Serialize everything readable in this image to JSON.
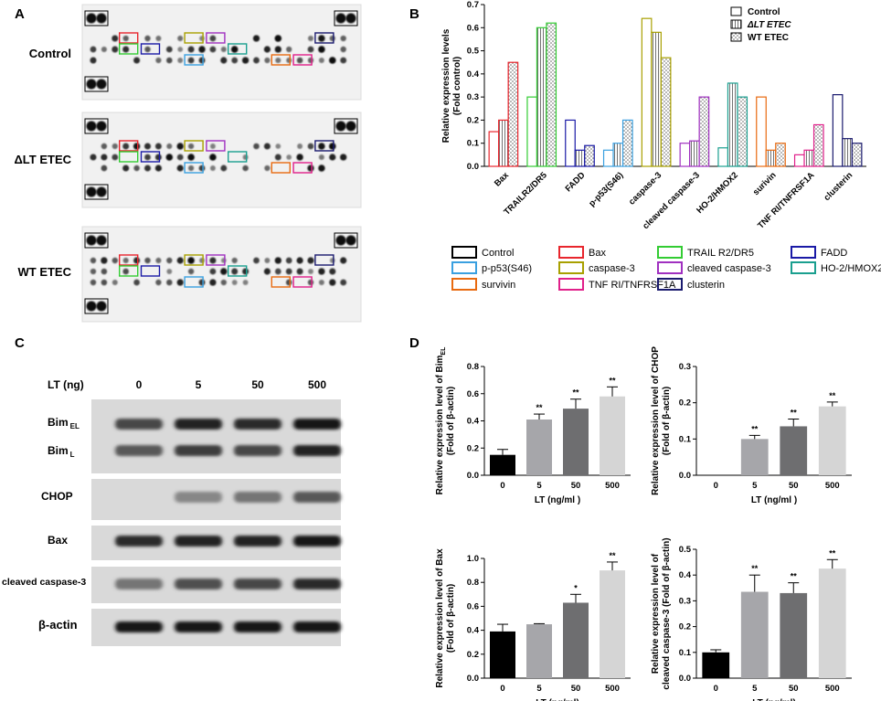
{
  "panels": {
    "A": {
      "label": "A",
      "rows": [
        "Control",
        "ΔLT ETEC",
        "WT ETEC"
      ]
    },
    "B": {
      "label": "B",
      "legend": [
        "Control",
        "ΔLT ETEC",
        "WT ETEC"
      ],
      "key_legend": [
        "Control",
        "Bax",
        "TRAIL R2/DR5",
        "FADD",
        "p-p53(S46)",
        "caspase-3",
        "cleaved caspase-3",
        "HO-2/HMOX2",
        "survivin",
        "TNF RI/TNFRSF1A",
        "clusterin"
      ]
    },
    "C": {
      "label": "C",
      "lt_label": "LT  (ng)",
      "doses": [
        "0",
        "5",
        "50",
        "500"
      ],
      "blot_labels": [
        "Bim",
        "Bim",
        "CHOP",
        "Bax",
        "cleaved caspase-3",
        "β-actin"
      ],
      "blot_subs": [
        "EL",
        "L"
      ]
    },
    "D": {
      "label": "D"
    }
  },
  "colors": {
    "Control": "#000000",
    "Bax": "#e8262d",
    "TRAIL R2/DR5": "#33cc33",
    "FADD": "#1a1aa6",
    "p-p53(S46)": "#3aa0e0",
    "caspase-3": "#a8a000",
    "cleaved caspase-3": "#a030c0",
    "HO-2/HMOX2": "#1a9f8f",
    "survivin": "#e86a10",
    "TNF RI/TNFRSF1A": "#e0208a",
    "clusterin": "#1a1a6e",
    "bar_dark": "#000000",
    "bar_grey1": "#a6a6aa",
    "bar_grey2": "#6e6e70",
    "bar_grey3": "#d5d5d5"
  },
  "chart_data": [
    {
      "panel": "B",
      "type": "bar",
      "categories": [
        "Bax",
        "TRAILR2/DR5",
        "FADD",
        "p-p53(S46)",
        "caspase-3",
        "cleaved caspase-3",
        "HO-2/HMOX2",
        "surivin",
        "TNF RI/TNFRSF1A",
        "clusterin"
      ],
      "series": [
        {
          "name": "Control",
          "values": [
            0.15,
            0.3,
            0.2,
            0.07,
            0.64,
            0.1,
            0.08,
            0.3,
            0.05,
            0.31
          ]
        },
        {
          "name": "ΔLT ETEC",
          "values": [
            0.2,
            0.6,
            0.07,
            0.1,
            0.58,
            0.11,
            0.36,
            0.07,
            0.07,
            0.12
          ]
        },
        {
          "name": "WT ETEC",
          "values": [
            0.45,
            0.62,
            0.09,
            0.2,
            0.47,
            0.3,
            0.3,
            0.1,
            0.18,
            0.1
          ]
        }
      ],
      "ylabel": "Relative expression levels",
      "ylabel2": "(Fold control)",
      "ylim": [
        0,
        0.7
      ],
      "yticks": [
        "0.0",
        "0.1",
        "0.2",
        "0.3",
        "0.4",
        "0.5",
        "0.6",
        "0.7"
      ]
    },
    {
      "panel": "D1",
      "type": "bar",
      "categories": [
        "0",
        "5",
        "50",
        "500"
      ],
      "values": [
        0.15,
        0.41,
        0.49,
        0.58
      ],
      "errors": [
        0.04,
        0.04,
        0.07,
        0.07
      ],
      "sig": [
        "",
        "**",
        "**",
        "**"
      ],
      "xlabel": "LT (ng/ml )",
      "ylabel_pre": "Relative expression level of Bim",
      "ylabel_sub": "EL",
      "ylabel2": "(Fold of β-actin)",
      "ylim": [
        0,
        0.8
      ],
      "yticks": [
        "0.0",
        "0.2",
        "0.4",
        "0.6",
        "0.8"
      ]
    },
    {
      "panel": "D2",
      "type": "bar",
      "categories": [
        "0",
        "5",
        "50",
        "500"
      ],
      "values": [
        0.001,
        0.1,
        0.135,
        0.19
      ],
      "errors": [
        0,
        0.01,
        0.02,
        0.012
      ],
      "sig": [
        "",
        "**",
        "**",
        "**"
      ],
      "xlabel": "LT (ng/ml )",
      "ylabel": "Relative expression level of CHOP",
      "ylabel2": "(Fold of β-actin)",
      "ylim": [
        0,
        0.3
      ],
      "yticks": [
        "0.0",
        "0.1",
        "0.2",
        "0.3"
      ]
    },
    {
      "panel": "D3",
      "type": "bar",
      "categories": [
        "0",
        "5",
        "50",
        "500"
      ],
      "values": [
        0.39,
        0.45,
        0.63,
        0.9
      ],
      "errors": [
        0.06,
        0.005,
        0.07,
        0.07
      ],
      "sig": [
        "",
        "",
        "*",
        "**"
      ],
      "xlabel": "LT (ng/ml)",
      "ylabel": "Relative expression level of Bax",
      "ylabel2": "(Fold of β-actin)",
      "ylim": [
        0,
        1.0
      ],
      "yticks": [
        "0.0",
        "0.2",
        "0.4",
        "0.6",
        "0.8",
        "1.0"
      ]
    },
    {
      "panel": "D4",
      "type": "bar",
      "categories": [
        "0",
        "5",
        "50",
        "500"
      ],
      "values": [
        0.1,
        0.335,
        0.33,
        0.425
      ],
      "errors": [
        0.01,
        0.065,
        0.04,
        0.035
      ],
      "sig": [
        "",
        "**",
        "**",
        "**"
      ],
      "xlabel": "LT (ng/ml)",
      "ylabel": "Relative expression level of",
      "ylabel2": "cleaved caspase-3 (Fold of β-actin)",
      "ylim": [
        0,
        0.5
      ],
      "yticks": [
        "0.0",
        "0.1",
        "0.2",
        "0.3",
        "0.4",
        "0.5"
      ]
    }
  ]
}
